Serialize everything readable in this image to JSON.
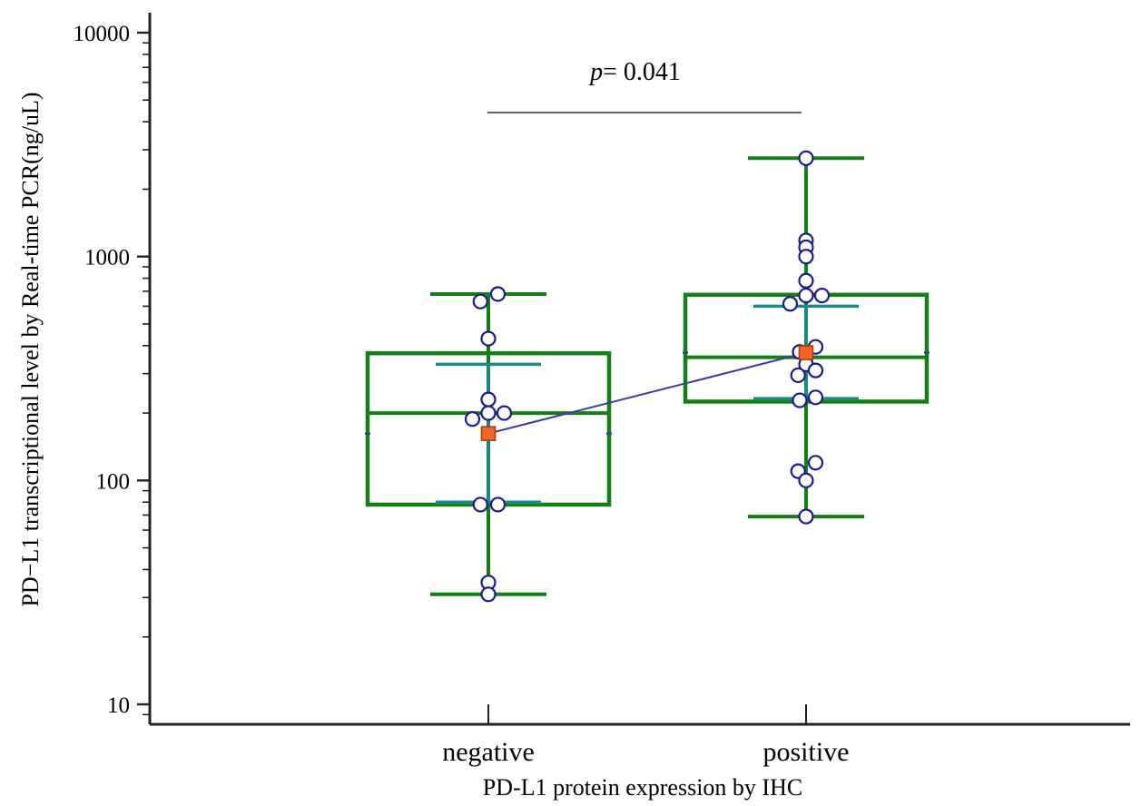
{
  "chart_data": {
    "type": "box",
    "xlabel": "PD-L1 protein expression by IHC",
    "ylabel": "PD−L1 transcriptional level by Real-time PCR(ng/uL)",
    "yscale": "log",
    "ylim": [
      8,
      10000
    ],
    "yticks": [
      "10",
      "100",
      "1000",
      "10000"
    ],
    "grid": false,
    "categories": [
      "negative",
      "positive"
    ],
    "groups": [
      {
        "category": "negative",
        "box": {
          "q1": 78,
          "median": 200,
          "q3": 370
        },
        "whisker": {
          "low": 31,
          "high": 680
        },
        "ci": {
          "low": 80,
          "high": 330
        },
        "mean": 162,
        "points": [
          {
            "y": 680,
            "dx": 0.03
          },
          {
            "y": 630,
            "dx": -0.025
          },
          {
            "y": 430,
            "dx": 0
          },
          {
            "y": 230,
            "dx": 0
          },
          {
            "y": 200,
            "dx": 0.05
          },
          {
            "y": 200,
            "dx": 0
          },
          {
            "y": 188,
            "dx": -0.05
          },
          {
            "y": 78,
            "dx": -0.025
          },
          {
            "y": 78,
            "dx": 0.03
          },
          {
            "y": 35,
            "dx": 0
          },
          {
            "y": 31,
            "dx": 0
          }
        ]
      },
      {
        "category": "positive",
        "box": {
          "q1": 225,
          "median": 355,
          "q3": 675
        },
        "whisker": {
          "low": 69,
          "high": 2750
        },
        "ci": {
          "low": 232,
          "high": 600
        },
        "mean": 372,
        "points": [
          {
            "y": 2750,
            "dx": 0
          },
          {
            "y": 1180,
            "dx": 0
          },
          {
            "y": 1100,
            "dx": 0
          },
          {
            "y": 1000,
            "dx": 0
          },
          {
            "y": 780,
            "dx": 0
          },
          {
            "y": 670,
            "dx": 0.05
          },
          {
            "y": 670,
            "dx": 0
          },
          {
            "y": 615,
            "dx": -0.05
          },
          {
            "y": 395,
            "dx": 0.03
          },
          {
            "y": 375,
            "dx": -0.02
          },
          {
            "y": 330,
            "dx": 0
          },
          {
            "y": 310,
            "dx": 0.03
          },
          {
            "y": 295,
            "dx": -0.025
          },
          {
            "y": 235,
            "dx": 0.03
          },
          {
            "y": 228,
            "dx": -0.02
          },
          {
            "y": 120,
            "dx": 0.03
          },
          {
            "y": 110,
            "dx": -0.025
          },
          {
            "y": 100,
            "dx": 0
          },
          {
            "y": 69,
            "dx": 0
          }
        ]
      }
    ],
    "annotation": {
      "p_label": "p",
      "p_value": "= 0.041"
    },
    "colors": {
      "box": "#138013",
      "ci": "#1a8a8a",
      "point_stroke": "#1a1a8c",
      "point_fill": "#ffffff",
      "mean_fill": "#f26522",
      "mean_stroke": "#b03a10",
      "mean_line": "#3b3ba8",
      "axis": "#222222"
    }
  }
}
